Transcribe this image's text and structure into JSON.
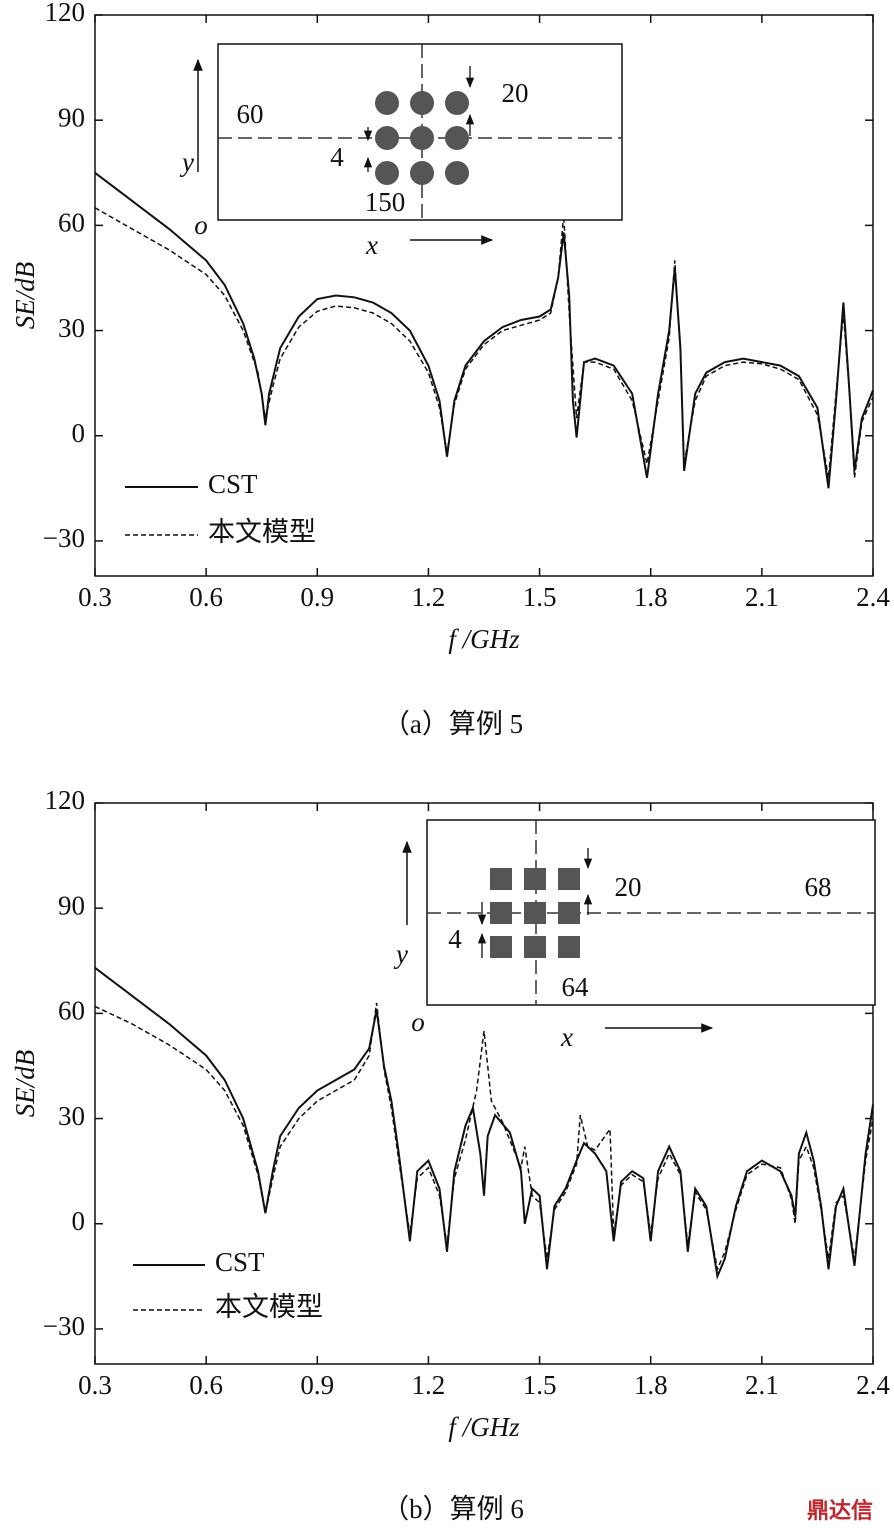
{
  "chart_data": [
    {
      "type": "line",
      "xlabel": "f /GHz",
      "ylabel": "SE/dB",
      "caption": "（a）算例 5",
      "xlim": [
        0.3,
        2.4
      ],
      "xticks": [
        0.3,
        0.6,
        0.9,
        1.2,
        1.5,
        1.8,
        2.1,
        2.4
      ],
      "ylim": [
        -40,
        120
      ],
      "yticks": [
        {
          "value": -30,
          "label": "−30"
        },
        0,
        30,
        60,
        90,
        120
      ],
      "legend": "lower left",
      "series": [
        {
          "name": "CST",
          "color": "#111111",
          "dash": false,
          "x": [
            0.3,
            0.4,
            0.5,
            0.6,
            0.65,
            0.7,
            0.73,
            0.75,
            0.76,
            0.77,
            0.8,
            0.85,
            0.9,
            0.95,
            1.0,
            1.05,
            1.1,
            1.15,
            1.2,
            1.23,
            1.25,
            1.27,
            1.3,
            1.35,
            1.4,
            1.45,
            1.5,
            1.53,
            1.55,
            1.565,
            1.58,
            1.59,
            1.6,
            1.62,
            1.65,
            1.7,
            1.75,
            1.79,
            1.82,
            1.85,
            1.865,
            1.88,
            1.89,
            1.92,
            1.95,
            2.0,
            2.05,
            2.1,
            2.15,
            2.2,
            2.25,
            2.28,
            2.3,
            2.32,
            2.335,
            2.35,
            2.37,
            2.4
          ],
          "values": [
            75,
            67,
            59,
            50,
            43,
            32,
            22,
            12,
            3,
            12,
            25,
            34,
            39,
            40,
            39.5,
            38,
            35,
            30,
            20,
            10,
            -6,
            10,
            20,
            27,
            31,
            33,
            34,
            36,
            45,
            58,
            40,
            10,
            -0.5,
            21,
            22,
            20,
            12,
            -12,
            12,
            30,
            48,
            25,
            -10,
            12,
            18,
            21,
            22,
            21,
            20,
            17,
            8,
            -15,
            10,
            38,
            15,
            -10,
            5,
            13
          ]
        },
        {
          "name": "本文模型",
          "color": "#111111",
          "dash": true,
          "x": [
            0.3,
            0.4,
            0.5,
            0.6,
            0.65,
            0.7,
            0.74,
            0.76,
            0.78,
            0.8,
            0.85,
            0.9,
            0.95,
            1.0,
            1.05,
            1.1,
            1.15,
            1.2,
            1.23,
            1.25,
            1.27,
            1.3,
            1.35,
            1.4,
            1.45,
            1.5,
            1.53,
            1.55,
            1.565,
            1.58,
            1.6,
            1.62,
            1.65,
            1.7,
            1.75,
            1.79,
            1.82,
            1.85,
            1.865,
            1.88,
            1.89,
            1.92,
            1.95,
            2.0,
            2.05,
            2.1,
            2.15,
            2.2,
            2.25,
            2.28,
            2.3,
            2.32,
            2.335,
            2.35,
            2.37,
            2.4
          ],
          "values": [
            65,
            59,
            53,
            46,
            40,
            30,
            18,
            5,
            14,
            22,
            31,
            35.5,
            37,
            36.5,
            35,
            32,
            27,
            18,
            8,
            -5,
            9,
            19,
            26,
            30,
            31.5,
            33,
            35,
            45,
            63,
            35,
            5,
            21,
            21,
            19,
            10,
            -8,
            10,
            28,
            50,
            24,
            -8,
            10,
            17,
            20,
            21,
            20.5,
            19,
            16,
            6,
            -12,
            12,
            35,
            14,
            -12,
            4,
            11
          ]
        }
      ],
      "inset": {
        "shape": "circle",
        "labels": [
          "60",
          "20",
          "4",
          "150"
        ],
        "axis_labels": [
          "y",
          "x",
          "o"
        ]
      }
    },
    {
      "type": "line",
      "xlabel": "f /GHz",
      "ylabel": "SE/dB",
      "caption": "（b）算例 6",
      "xlim": [
        0.3,
        2.4
      ],
      "xticks": [
        0.3,
        0.6,
        0.9,
        1.2,
        1.5,
        1.8,
        2.1,
        2.4
      ],
      "ylim": [
        -40,
        120
      ],
      "yticks": [
        {
          "value": -30,
          "label": "−30"
        },
        0,
        30,
        60,
        90,
        120
      ],
      "legend": "lower left",
      "series": [
        {
          "name": "CST",
          "color": "#111111",
          "dash": false,
          "x": [
            0.3,
            0.4,
            0.5,
            0.6,
            0.65,
            0.7,
            0.74,
            0.76,
            0.78,
            0.8,
            0.85,
            0.9,
            0.95,
            1.0,
            1.04,
            1.06,
            1.08,
            1.1,
            1.12,
            1.15,
            1.17,
            1.2,
            1.23,
            1.25,
            1.27,
            1.3,
            1.32,
            1.34,
            1.35,
            1.36,
            1.38,
            1.42,
            1.45,
            1.46,
            1.48,
            1.5,
            1.52,
            1.54,
            1.57,
            1.6,
            1.62,
            1.65,
            1.68,
            1.7,
            1.72,
            1.75,
            1.78,
            1.8,
            1.82,
            1.85,
            1.88,
            1.9,
            1.92,
            1.95,
            1.98,
            2.0,
            2.03,
            2.06,
            2.1,
            2.15,
            2.18,
            2.19,
            2.2,
            2.22,
            2.24,
            2.26,
            2.28,
            2.3,
            2.32,
            2.35,
            2.38,
            2.4
          ],
          "values": [
            73,
            65,
            57,
            48,
            41,
            30,
            15,
            3,
            15,
            25,
            33,
            38,
            41,
            44,
            50,
            61,
            45,
            35,
            20,
            -5,
            15,
            18,
            10,
            -8,
            15,
            28,
            33,
            20,
            8,
            25,
            31,
            26,
            15,
            0,
            10,
            8,
            -13,
            5,
            10,
            18,
            23,
            20,
            15,
            -5,
            12,
            15,
            13,
            -5,
            15,
            22,
            15,
            -8,
            10,
            5,
            -15,
            -10,
            5,
            15,
            18,
            15,
            8,
            2,
            20,
            26,
            18,
            5,
            -13,
            5,
            10,
            -12,
            20,
            34
          ]
        },
        {
          "name": "本文模型",
          "color": "#111111",
          "dash": true,
          "x": [
            0.3,
            0.4,
            0.5,
            0.6,
            0.65,
            0.7,
            0.74,
            0.76,
            0.78,
            0.8,
            0.85,
            0.9,
            0.95,
            1.0,
            1.04,
            1.06,
            1.08,
            1.1,
            1.12,
            1.15,
            1.17,
            1.2,
            1.23,
            1.25,
            1.27,
            1.3,
            1.33,
            1.35,
            1.37,
            1.4,
            1.45,
            1.46,
            1.48,
            1.5,
            1.52,
            1.54,
            1.57,
            1.6,
            1.61,
            1.63,
            1.65,
            1.69,
            1.7,
            1.72,
            1.75,
            1.78,
            1.8,
            1.82,
            1.85,
            1.88,
            1.9,
            1.92,
            1.95,
            1.98,
            2.0,
            2.03,
            2.06,
            2.1,
            2.15,
            2.18,
            2.19,
            2.2,
            2.22,
            2.24,
            2.26,
            2.28,
            2.3,
            2.32,
            2.35,
            2.38,
            2.4
          ],
          "values": [
            62,
            57,
            51,
            44,
            38,
            28,
            14,
            3,
            13,
            22,
            30,
            35,
            38,
            41,
            48,
            63,
            44,
            33,
            18,
            -3,
            13,
            16,
            8,
            -6,
            13,
            24,
            38,
            55,
            35,
            29,
            16,
            22,
            8,
            6,
            -10,
            4,
            9,
            17,
            31,
            22,
            21,
            27,
            -3,
            11,
            14,
            12,
            -3,
            13,
            20,
            14,
            -6,
            9,
            4,
            -13,
            -8,
            4,
            14,
            17,
            16,
            7,
            0,
            18,
            22,
            16,
            4,
            -10,
            6,
            8,
            -10,
            18,
            30
          ]
        }
      ],
      "inset": {
        "shape": "square",
        "labels": [
          "68",
          "20",
          "4",
          "64"
        ],
        "axis_labels": [
          "y",
          "x",
          "o"
        ]
      }
    }
  ],
  "watermark": "鼎达信"
}
